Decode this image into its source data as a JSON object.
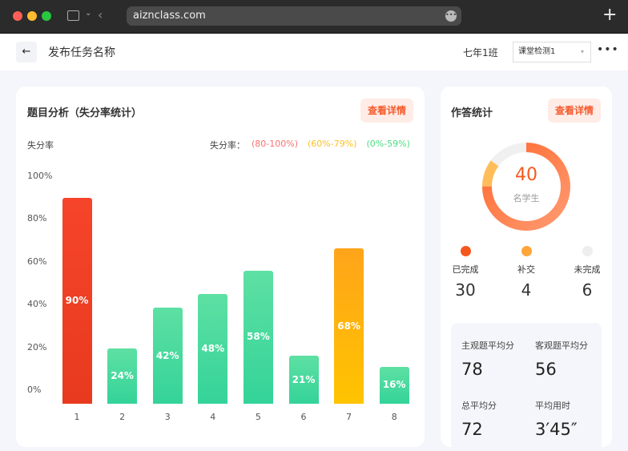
{
  "browser": {
    "url": "aiznclass.com",
    "new_tab_icon": "plus-icon"
  },
  "header": {
    "title": "发布任务名称",
    "class_name": "七年1班",
    "select_value": "课堂检测1"
  },
  "left_card": {
    "title": "题目分析（失分率统计）",
    "detail_label": "查看详情",
    "axis_label": "失分率",
    "legend_label": "失分率：",
    "legend": [
      {
        "label": "(80-100%)",
        "color": "#f87171"
      },
      {
        "label": "(60%-79%)",
        "color": "#fbbf24"
      },
      {
        "label": "(0%-59%)",
        "color": "#4ade80"
      }
    ]
  },
  "chart_data": {
    "type": "bar",
    "ylabel": "失分率",
    "ylim": [
      0,
      100
    ],
    "yticks": [
      "100%",
      "80%",
      "60%",
      "40%",
      "20%",
      "0%"
    ],
    "categories": [
      "1",
      "2",
      "3",
      "4",
      "5",
      "6",
      "7",
      "8"
    ],
    "values": [
      90,
      24,
      42,
      48,
      58,
      21,
      68,
      16
    ],
    "labels": [
      "90%",
      "24%",
      "42%",
      "48%",
      "58%",
      "21%",
      "68%",
      "16%"
    ],
    "grid": false
  },
  "right_card": {
    "title": "作答统计",
    "detail_label": "查看详情",
    "total": "40",
    "total_label": "名学生",
    "legend": [
      {
        "label": "已完成",
        "value": "30",
        "color": "#f5581f"
      },
      {
        "label": "补交",
        "value": "4",
        "color": "#ffa53a"
      },
      {
        "label": "未完成",
        "value": "6",
        "color": "#eeeeee"
      }
    ],
    "stats": [
      {
        "label": "主观题平均分",
        "value": "78"
      },
      {
        "label": "客观题平均分",
        "value": "56"
      },
      {
        "label": "总平均分",
        "value": "72"
      },
      {
        "label": "平均用时",
        "value": "3′45″"
      }
    ]
  }
}
